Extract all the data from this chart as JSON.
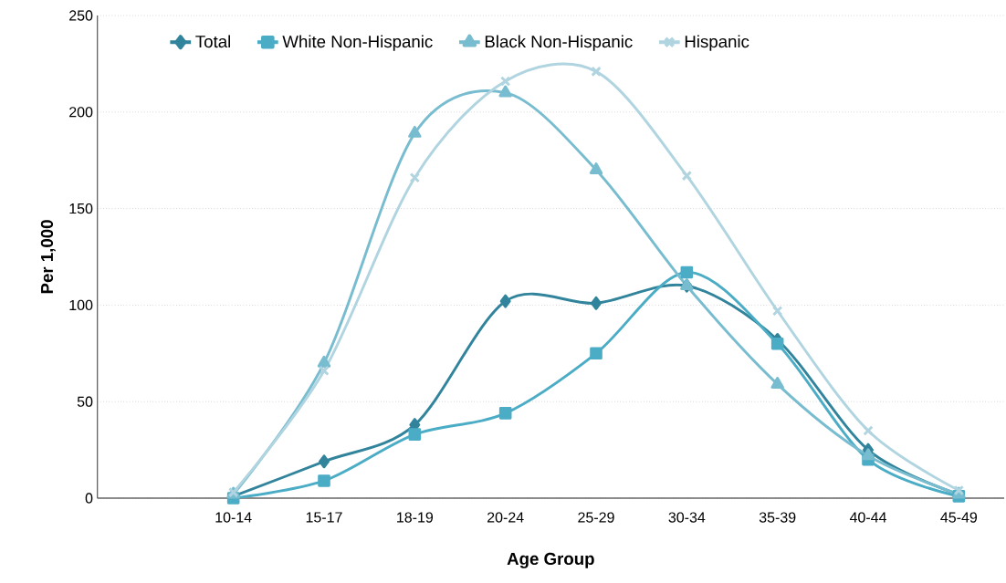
{
  "chart_data": {
    "type": "line",
    "xlabel": "Age Group",
    "ylabel": "Per 1,000",
    "categories": [
      null,
      "10-14",
      "15-17",
      "18-19",
      "20-24",
      "25-29",
      "30-34",
      "35-39",
      "40-44",
      "45-49"
    ],
    "ylim": [
      0,
      250
    ],
    "yticks": [
      0,
      50,
      100,
      150,
      200,
      250
    ],
    "grid": "y",
    "legend": "top",
    "series": [
      {
        "name": "Total",
        "color": "#31849b",
        "marker": "diamond",
        "values": [
          null,
          1,
          19,
          38,
          102,
          101,
          110,
          82,
          25,
          2
        ]
      },
      {
        "name": "White Non-Hispanic",
        "color": "#4bacc6",
        "marker": "square",
        "values": [
          null,
          0,
          9,
          33,
          44,
          75,
          117,
          80,
          20,
          1
        ]
      },
      {
        "name": "Black Non-Hispanic",
        "color": "#78bcd0",
        "marker": "triangle",
        "values": [
          null,
          2,
          70,
          189,
          210,
          170,
          110,
          59,
          22,
          2
        ]
      },
      {
        "name": "Hispanic",
        "color": "#b0d4e0",
        "marker": "cross",
        "values": [
          null,
          3,
          66,
          166,
          216,
          221,
          167,
          97,
          35,
          4
        ]
      }
    ]
  }
}
